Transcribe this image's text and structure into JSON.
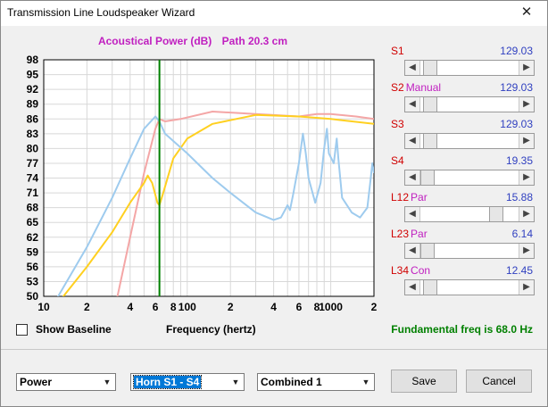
{
  "window": {
    "title": "Transmission Line Loudspeaker Wizard"
  },
  "chart_title": {
    "label": "Acoustical Power (dB)",
    "path": "Path 20.3 cm"
  },
  "chart_data": {
    "type": "line",
    "title": "Acoustical Power (dB)   Path 20.3 cm",
    "xlabel": "Frequency (hertz)",
    "ylabel": "",
    "x_scale": "log",
    "xlim": [
      10,
      2000
    ],
    "ylim": [
      50,
      98
    ],
    "yticks": [
      50,
      53,
      56,
      59,
      62,
      65,
      68,
      71,
      74,
      77,
      80,
      83,
      86,
      89,
      92,
      95,
      98
    ],
    "xtick_labels": [
      {
        "x": 10,
        "label": "10"
      },
      {
        "x": 20,
        "label": "2"
      },
      {
        "x": 40,
        "label": "4"
      },
      {
        "x": 60,
        "label": "6"
      },
      {
        "x": 80,
        "label": "8"
      },
      {
        "x": 100,
        "label": "100"
      },
      {
        "x": 200,
        "label": "2"
      },
      {
        "x": 400,
        "label": "4"
      },
      {
        "x": 600,
        "label": "6"
      },
      {
        "x": 800,
        "label": "8"
      },
      {
        "x": 1000,
        "label": "1000"
      },
      {
        "x": 2000,
        "label": "2"
      }
    ],
    "marker_x": 64,
    "grid": true,
    "series": [
      {
        "color": "#f4a6a6",
        "points": [
          [
            30,
            45
          ],
          [
            40,
            62
          ],
          [
            50,
            75
          ],
          [
            60,
            84
          ],
          [
            64,
            86
          ],
          [
            70,
            85.5
          ],
          [
            90,
            86
          ],
          [
            150,
            87.5
          ],
          [
            300,
            87
          ],
          [
            600,
            86.5
          ],
          [
            800,
            87
          ],
          [
            1000,
            87
          ],
          [
            1500,
            86.5
          ],
          [
            2000,
            86
          ]
        ]
      },
      {
        "color": "#ffd020",
        "points": [
          [
            10,
            45
          ],
          [
            20,
            56
          ],
          [
            30,
            63
          ],
          [
            40,
            69
          ],
          [
            50,
            73
          ],
          [
            53,
            74.5
          ],
          [
            57,
            73
          ],
          [
            62,
            69
          ],
          [
            64,
            68.5
          ],
          [
            68,
            71
          ],
          [
            80,
            78
          ],
          [
            100,
            82
          ],
          [
            150,
            85
          ],
          [
            300,
            86.8
          ],
          [
            600,
            86.5
          ],
          [
            1000,
            86
          ],
          [
            2000,
            85
          ]
        ]
      },
      {
        "color": "#9ecbee",
        "points": [
          [
            10,
            45
          ],
          [
            20,
            60
          ],
          [
            30,
            70
          ],
          [
            40,
            78
          ],
          [
            50,
            84
          ],
          [
            60,
            86.5
          ],
          [
            64,
            85.5
          ],
          [
            70,
            83
          ],
          [
            100,
            79
          ],
          [
            150,
            74
          ],
          [
            200,
            71
          ],
          [
            300,
            67
          ],
          [
            400,
            65.5
          ],
          [
            450,
            66
          ],
          [
            480,
            67.5
          ],
          [
            500,
            68.5
          ],
          [
            520,
            67.5
          ],
          [
            550,
            71
          ],
          [
            600,
            77
          ],
          [
            640,
            83
          ],
          [
            670,
            79
          ],
          [
            700,
            74
          ],
          [
            780,
            69
          ],
          [
            850,
            73
          ],
          [
            900,
            80
          ],
          [
            940,
            84
          ],
          [
            970,
            79
          ],
          [
            1050,
            77
          ],
          [
            1100,
            82
          ],
          [
            1130,
            78
          ],
          [
            1200,
            70
          ],
          [
            1400,
            67
          ],
          [
            1600,
            66
          ],
          [
            1800,
            68
          ],
          [
            1900,
            74
          ],
          [
            1950,
            77
          ],
          [
            2000,
            75
          ]
        ]
      }
    ]
  },
  "sliders": [
    {
      "name": "S1",
      "sub": "",
      "value": "129.03",
      "position": 0.03
    },
    {
      "name": "S2",
      "sub": "Manual",
      "value": "129.03",
      "position": 0.03
    },
    {
      "name": "S3",
      "sub": "",
      "value": "129.03",
      "position": 0.03
    },
    {
      "name": "S4",
      "sub": "",
      "value": "19.35",
      "position": 0.0
    },
    {
      "name": "L12",
      "sub": "Par",
      "value": "15.88",
      "position": 0.82
    },
    {
      "name": "L23",
      "sub": "Par",
      "value": "6.14",
      "position": 0.0
    },
    {
      "name": "L34",
      "sub": "Con",
      "value": "12.45",
      "position": 0.03
    }
  ],
  "controls": {
    "show_baseline": "Show Baseline",
    "freq_axis_label": "Frequency (hertz)",
    "fundamental": "Fundamental freq is 68.0 Hz",
    "select_1": "Power",
    "select_2": "Horn S1 - S4",
    "select_3": "Combined 1",
    "save": "Save",
    "cancel": "Cancel"
  }
}
